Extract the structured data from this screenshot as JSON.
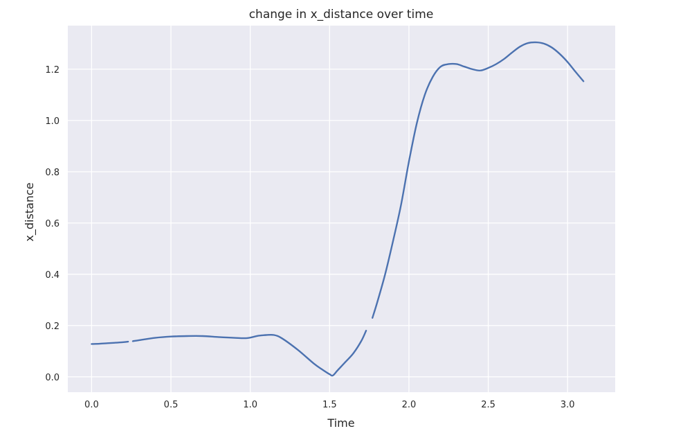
{
  "chart_data": {
    "type": "line",
    "title": "change in x_distance over time",
    "xlabel": "Time",
    "ylabel": "x_distance",
    "xlim": [
      -0.15,
      3.3
    ],
    "ylim": [
      -0.06,
      1.37
    ],
    "xticks": [
      0.0,
      0.5,
      1.0,
      1.5,
      2.0,
      2.5,
      3.0
    ],
    "xtick_labels": [
      "0.0",
      "0.5",
      "1.0",
      "1.5",
      "2.0",
      "2.5",
      "3.0"
    ],
    "yticks": [
      0.0,
      0.2,
      0.4,
      0.6,
      0.8,
      1.0,
      1.2
    ],
    "ytick_labels": [
      "0.0",
      "0.2",
      "0.4",
      "0.6",
      "0.8",
      "1.0",
      "1.2"
    ],
    "grid": true,
    "background": "#eaeaf2",
    "line_color": "#4c72b0",
    "series": [
      {
        "segments": [
          {
            "x": [
              0.0,
              0.05,
              0.1,
              0.15,
              0.2,
              0.23
            ],
            "y": [
              0.128,
              0.129,
              0.131,
              0.133,
              0.135,
              0.137
            ]
          },
          {
            "x": [
              0.26,
              0.3,
              0.4,
              0.5,
              0.6,
              0.7,
              0.8,
              0.9,
              0.98,
              1.05,
              1.1,
              1.15,
              1.2,
              1.3,
              1.4,
              1.45,
              1.5,
              1.52,
              1.55,
              1.6,
              1.65,
              1.7,
              1.73
            ],
            "y": [
              0.139,
              0.143,
              0.152,
              0.157,
              0.159,
              0.159,
              0.155,
              0.152,
              0.151,
              0.16,
              0.163,
              0.163,
              0.15,
              0.105,
              0.052,
              0.03,
              0.01,
              0.005,
              0.025,
              0.058,
              0.092,
              0.14,
              0.18
            ]
          },
          {
            "x": [
              1.77,
              1.8,
              1.85,
              1.9,
              1.95,
              2.0,
              2.05,
              2.1,
              2.15,
              2.2,
              2.25,
              2.3,
              2.35,
              2.4,
              2.45,
              2.5,
              2.55,
              2.6,
              2.65,
              2.7,
              2.75,
              2.8,
              2.85,
              2.9,
              2.95,
              3.0,
              3.05,
              3.1
            ],
            "y": [
              0.23,
              0.29,
              0.4,
              0.53,
              0.67,
              0.84,
              0.99,
              1.1,
              1.17,
              1.21,
              1.22,
              1.22,
              1.21,
              1.2,
              1.195,
              1.205,
              1.22,
              1.24,
              1.265,
              1.288,
              1.302,
              1.305,
              1.3,
              1.285,
              1.26,
              1.228,
              1.19,
              1.153
            ]
          }
        ]
      }
    ]
  }
}
